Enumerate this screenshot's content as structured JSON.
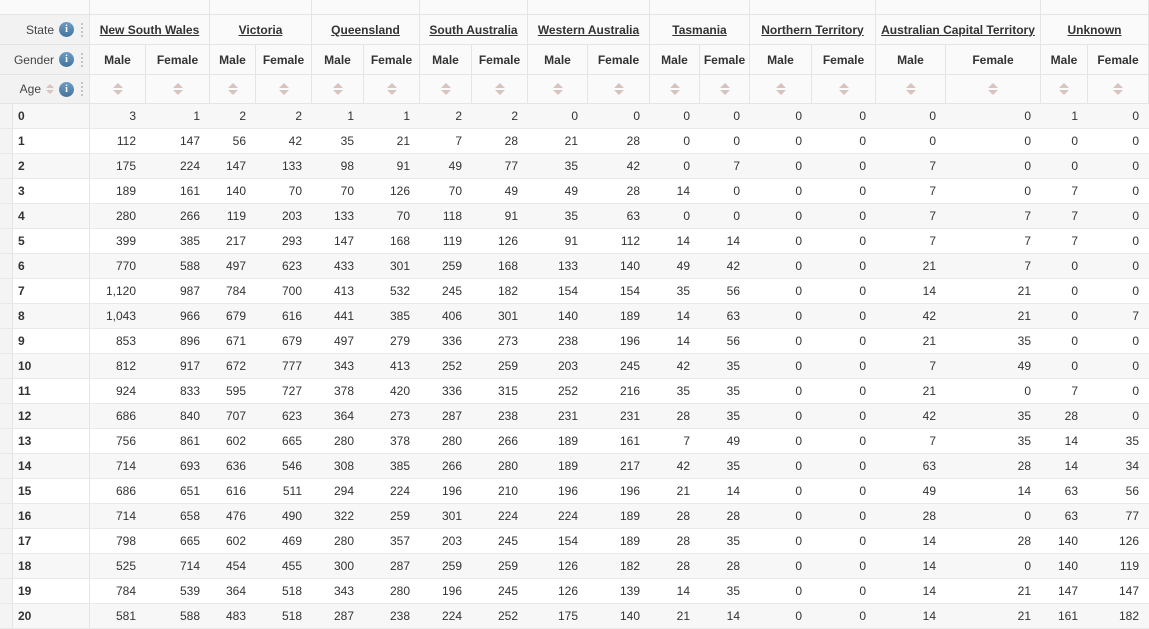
{
  "header": {
    "state_label": "State",
    "gender_label": "Gender",
    "age_label": "Age",
    "info_icon_glyph": "i",
    "states": [
      "New South Wales",
      "Victoria",
      "Queensland",
      "South Australia",
      "Western Australia",
      "Tasmania",
      "Northern Territory",
      "Australian Capital Territory",
      "Unknown"
    ],
    "gender_labels": [
      "Male",
      "Female"
    ]
  },
  "colors": {
    "border": "#e4e4e4",
    "header_left_bg": "#f2f2f2",
    "header_right_bg": "#fafafa",
    "row_stripe_bg": "#f7f7f7",
    "sort_arrow": "#d7c4bf",
    "info_icon_blue": "#44739e",
    "text": "#333333"
  },
  "table": {
    "value_columns": [
      "New South Wales Male",
      "New South Wales Female",
      "Victoria Male",
      "Victoria Female",
      "Queensland Male",
      "Queensland Female",
      "South Australia Male",
      "South Australia Female",
      "Western Australia Male",
      "Western Australia Female",
      "Tasmania Male",
      "Tasmania Female",
      "Northern Territory Male",
      "Northern Territory Female",
      "Australian Capital Territory Male",
      "Australian Capital Territory Female",
      "Unknown Male",
      "Unknown Female"
    ],
    "rows": [
      {
        "age": "0",
        "values": [
          "3",
          "1",
          "2",
          "2",
          "1",
          "1",
          "2",
          "2",
          "0",
          "0",
          "0",
          "0",
          "0",
          "0",
          "0",
          "0",
          "1",
          "0"
        ]
      },
      {
        "age": "1",
        "values": [
          "112",
          "147",
          "56",
          "42",
          "35",
          "21",
          "7",
          "28",
          "21",
          "28",
          "0",
          "0",
          "0",
          "0",
          "0",
          "0",
          "0",
          "0"
        ]
      },
      {
        "age": "2",
        "values": [
          "175",
          "224",
          "147",
          "133",
          "98",
          "91",
          "49",
          "77",
          "35",
          "42",
          "0",
          "7",
          "0",
          "0",
          "7",
          "0",
          "0",
          "0"
        ]
      },
      {
        "age": "3",
        "values": [
          "189",
          "161",
          "140",
          "70",
          "70",
          "126",
          "70",
          "49",
          "49",
          "28",
          "14",
          "0",
          "0",
          "0",
          "7",
          "0",
          "7",
          "0"
        ]
      },
      {
        "age": "4",
        "values": [
          "280",
          "266",
          "119",
          "203",
          "133",
          "70",
          "118",
          "91",
          "35",
          "63",
          "0",
          "0",
          "0",
          "0",
          "7",
          "7",
          "7",
          "0"
        ]
      },
      {
        "age": "5",
        "values": [
          "399",
          "385",
          "217",
          "293",
          "147",
          "168",
          "119",
          "126",
          "91",
          "112",
          "14",
          "14",
          "0",
          "0",
          "7",
          "7",
          "7",
          "0"
        ]
      },
      {
        "age": "6",
        "values": [
          "770",
          "588",
          "497",
          "623",
          "433",
          "301",
          "259",
          "168",
          "133",
          "140",
          "49",
          "42",
          "0",
          "0",
          "21",
          "7",
          "0",
          "0"
        ]
      },
      {
        "age": "7",
        "values": [
          "1,120",
          "987",
          "784",
          "700",
          "413",
          "532",
          "245",
          "182",
          "154",
          "154",
          "35",
          "56",
          "0",
          "0",
          "14",
          "21",
          "0",
          "0"
        ]
      },
      {
        "age": "8",
        "values": [
          "1,043",
          "966",
          "679",
          "616",
          "441",
          "385",
          "406",
          "301",
          "140",
          "189",
          "14",
          "63",
          "0",
          "0",
          "42",
          "21",
          "0",
          "7"
        ]
      },
      {
        "age": "9",
        "values": [
          "853",
          "896",
          "671",
          "679",
          "497",
          "279",
          "336",
          "273",
          "238",
          "196",
          "14",
          "56",
          "0",
          "0",
          "21",
          "35",
          "0",
          "0"
        ]
      },
      {
        "age": "10",
        "values": [
          "812",
          "917",
          "672",
          "777",
          "343",
          "413",
          "252",
          "259",
          "203",
          "245",
          "42",
          "35",
          "0",
          "0",
          "7",
          "49",
          "0",
          "0"
        ]
      },
      {
        "age": "11",
        "values": [
          "924",
          "833",
          "595",
          "727",
          "378",
          "420",
          "336",
          "315",
          "252",
          "216",
          "35",
          "35",
          "0",
          "0",
          "21",
          "0",
          "7",
          "0"
        ]
      },
      {
        "age": "12",
        "values": [
          "686",
          "840",
          "707",
          "623",
          "364",
          "273",
          "287",
          "238",
          "231",
          "231",
          "28",
          "35",
          "0",
          "0",
          "42",
          "35",
          "28",
          "0"
        ]
      },
      {
        "age": "13",
        "values": [
          "756",
          "861",
          "602",
          "665",
          "280",
          "378",
          "280",
          "266",
          "189",
          "161",
          "7",
          "49",
          "0",
          "0",
          "7",
          "35",
          "14",
          "35"
        ]
      },
      {
        "age": "14",
        "values": [
          "714",
          "693",
          "636",
          "546",
          "308",
          "385",
          "266",
          "280",
          "189",
          "217",
          "42",
          "35",
          "0",
          "0",
          "63",
          "28",
          "14",
          "34"
        ]
      },
      {
        "age": "15",
        "values": [
          "686",
          "651",
          "616",
          "511",
          "294",
          "224",
          "196",
          "210",
          "196",
          "196",
          "21",
          "14",
          "0",
          "0",
          "49",
          "14",
          "63",
          "56"
        ]
      },
      {
        "age": "16",
        "values": [
          "714",
          "658",
          "476",
          "490",
          "322",
          "259",
          "301",
          "224",
          "224",
          "189",
          "28",
          "28",
          "0",
          "0",
          "28",
          "0",
          "63",
          "77"
        ]
      },
      {
        "age": "17",
        "values": [
          "798",
          "665",
          "602",
          "469",
          "280",
          "357",
          "203",
          "245",
          "154",
          "189",
          "28",
          "35",
          "0",
          "0",
          "14",
          "28",
          "140",
          "126"
        ]
      },
      {
        "age": "18",
        "values": [
          "525",
          "714",
          "454",
          "455",
          "300",
          "287",
          "259",
          "259",
          "126",
          "182",
          "28",
          "28",
          "0",
          "0",
          "14",
          "0",
          "140",
          "119"
        ]
      },
      {
        "age": "19",
        "values": [
          "784",
          "539",
          "364",
          "518",
          "343",
          "280",
          "196",
          "245",
          "126",
          "139",
          "14",
          "35",
          "0",
          "0",
          "14",
          "21",
          "147",
          "147"
        ]
      },
      {
        "age": "20",
        "values": [
          "581",
          "588",
          "483",
          "518",
          "287",
          "238",
          "224",
          "252",
          "175",
          "140",
          "21",
          "14",
          "0",
          "0",
          "14",
          "21",
          "161",
          "182"
        ]
      }
    ]
  }
}
